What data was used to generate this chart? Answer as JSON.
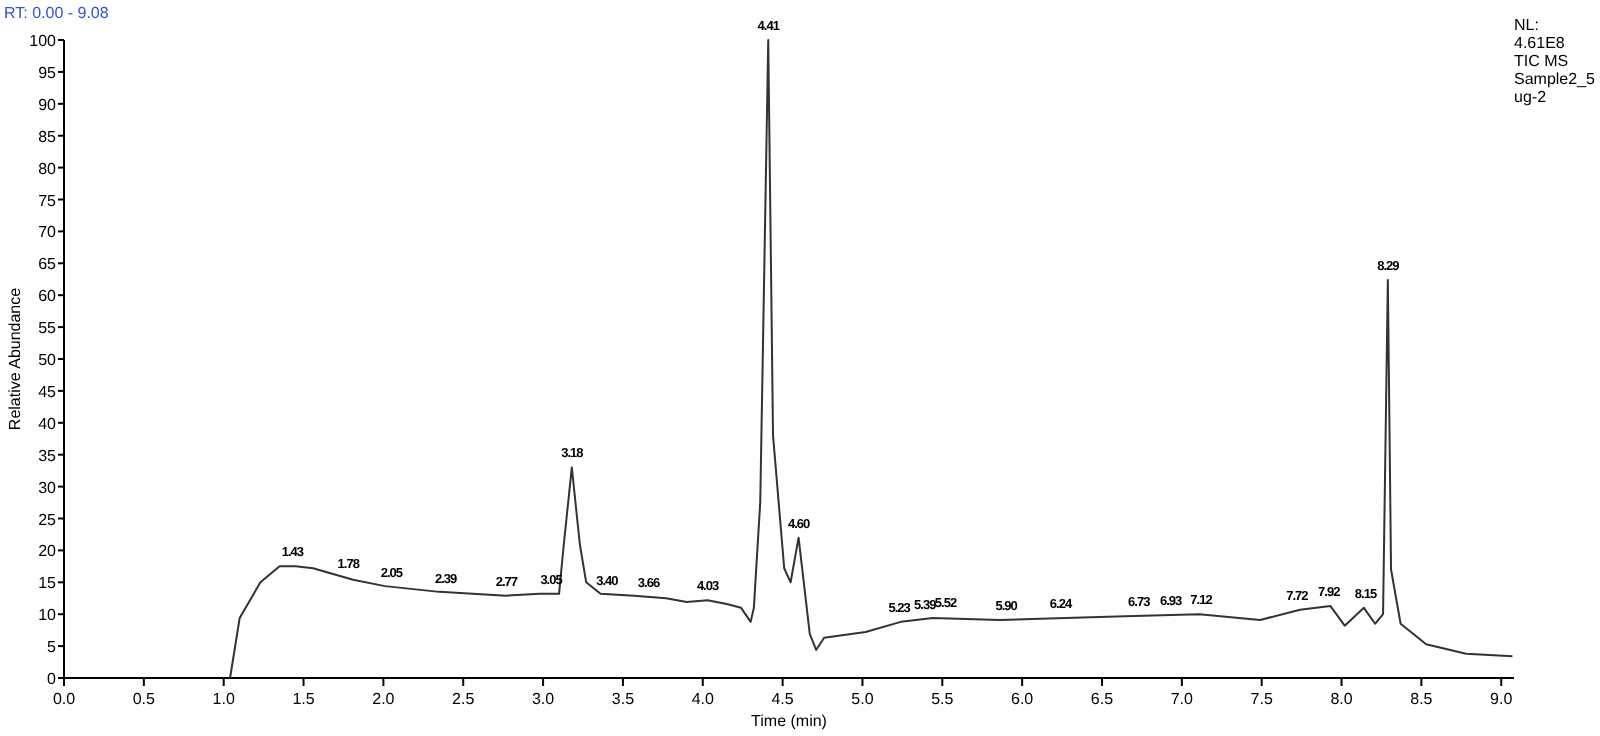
{
  "chart_data": {
    "type": "line",
    "xlabel": "Time (min)",
    "ylabel": "Relative Abundance",
    "x": [
      1.04,
      1.1,
      1.23,
      1.35,
      1.45,
      1.56,
      1.81,
      2.01,
      2.35,
      2.77,
      2.98,
      3.1,
      3.13,
      3.18,
      3.23,
      3.27,
      3.36,
      3.57,
      3.77,
      3.9,
      4.03,
      4.15,
      4.24,
      4.3,
      4.32,
      4.36,
      4.41,
      4.44,
      4.51,
      4.55,
      4.6,
      4.67,
      4.71,
      4.76,
      5.02,
      5.24,
      5.44,
      5.86,
      6.27,
      6.7,
      7.11,
      7.49,
      7.74,
      7.93,
      8.02,
      8.14,
      8.21,
      8.26,
      8.29,
      8.31,
      8.37,
      8.53,
      8.78,
      9.07
    ],
    "series": [
      {
        "color": "#333333",
        "values": [
          0,
          9.4,
          15,
          17.5,
          17.5,
          17.2,
          15.4,
          14.4,
          13.5,
          12.9,
          13.2,
          13.2,
          21,
          33,
          21,
          15,
          13.2,
          12.9,
          12.5,
          11.9,
          12.2,
          11.6,
          11,
          8.8,
          11,
          27.6,
          100,
          38,
          17.2,
          15,
          22,
          6.9,
          4.4,
          6.3,
          7.2,
          8.8,
          9.4,
          9.1,
          9.4,
          9.7,
          10,
          9.1,
          10.7,
          11.3,
          8.2,
          11,
          8.5,
          10,
          62.4,
          17,
          8.5,
          5.3,
          3.8,
          3.4
        ]
      }
    ],
    "xlim": [
      0,
      9.08
    ],
    "xticks": [
      {
        "value": 0,
        "label": "0.0"
      },
      {
        "value": 0.5,
        "label": "0.5"
      },
      {
        "value": 1,
        "label": "1.0"
      },
      {
        "value": 1.5,
        "label": "1.5"
      },
      {
        "value": 2,
        "label": "2.0"
      },
      {
        "value": 2.5,
        "label": "2.5"
      },
      {
        "value": 3,
        "label": "3.0"
      },
      {
        "value": 3.5,
        "label": "3.5"
      },
      {
        "value": 4,
        "label": "4.0"
      },
      {
        "value": 4.5,
        "label": "4.5"
      },
      {
        "value": 5,
        "label": "5.0"
      },
      {
        "value": 5.5,
        "label": "5.5"
      },
      {
        "value": 6,
        "label": "6.0"
      },
      {
        "value": 6.5,
        "label": "6.5"
      },
      {
        "value": 7,
        "label": "7.0"
      },
      {
        "value": 7.5,
        "label": "7.5"
      },
      {
        "value": 8,
        "label": "8.0"
      },
      {
        "value": 8.5,
        "label": "8.5"
      },
      {
        "value": 9,
        "label": "9.0"
      }
    ],
    "ylim": [
      0,
      100
    ],
    "yticks": [
      0,
      5,
      10,
      15,
      20,
      25,
      30,
      35,
      40,
      45,
      50,
      55,
      60,
      65,
      70,
      75,
      80,
      85,
      90,
      95,
      100
    ],
    "grid": false,
    "marker": "none",
    "line_style": "solid",
    "annotations": [
      "RT: 0.00 - 9.08",
      "NL:\n4.61E8\nTIC MS\nSample2_5\nug-2",
      {
        "text": "1.43",
        "x": 1.43,
        "y": 17.5
      },
      {
        "text": "1.78",
        "x": 1.78,
        "y": 15.6
      },
      {
        "text": "2.05",
        "x": 2.05,
        "y": 14.3
      },
      {
        "text": "2.39",
        "x": 2.39,
        "y": 13.4
      },
      {
        "text": "2.77",
        "x": 2.77,
        "y": 12.9
      },
      {
        "text": "3.05",
        "x": 3.05,
        "y": 13.2
      },
      {
        "text": "3.18",
        "x": 3.18,
        "y": 33
      },
      {
        "text": "3.40",
        "x": 3.4,
        "y": 13
      },
      {
        "text": "3.66",
        "x": 3.66,
        "y": 12.7
      },
      {
        "text": "4.03",
        "x": 4.03,
        "y": 12.2
      },
      {
        "text": "4.41",
        "x": 4.41,
        "y": 100
      },
      {
        "text": "4.60",
        "x": 4.6,
        "y": 22
      },
      {
        "text": "5.23",
        "x": 5.23,
        "y": 8.8
      },
      {
        "text": "5.39",
        "x": 5.39,
        "y": 9.2
      },
      {
        "text": "5.52",
        "x": 5.52,
        "y": 9.5
      },
      {
        "text": "5.90",
        "x": 5.9,
        "y": 9.1
      },
      {
        "text": "6.24",
        "x": 6.24,
        "y": 9.4
      },
      {
        "text": "6.73",
        "x": 6.73,
        "y": 9.7
      },
      {
        "text": "6.93",
        "x": 6.93,
        "y": 9.8
      },
      {
        "text": "7.12",
        "x": 7.12,
        "y": 10
      },
      {
        "text": "7.72",
        "x": 7.72,
        "y": 10.6
      },
      {
        "text": "7.92",
        "x": 7.92,
        "y": 11.3
      },
      {
        "text": "8.15",
        "x": 8.15,
        "y": 11
      },
      {
        "text": "8.29",
        "x": 8.29,
        "y": 62.4
      }
    ]
  }
}
